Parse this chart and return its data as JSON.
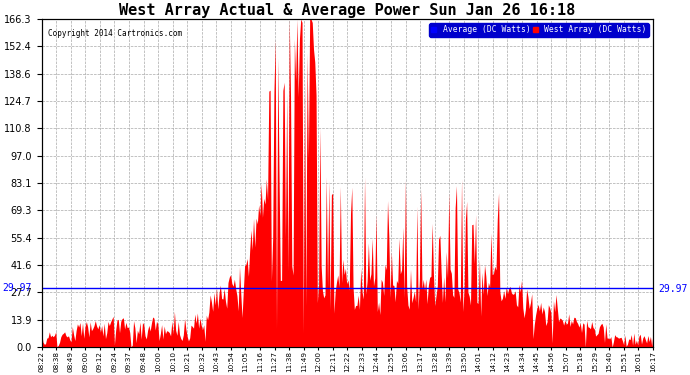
{
  "title": "West Array Actual & Average Power Sun Jan 26 16:18",
  "copyright": "Copyright 2014 Cartronics.com",
  "avg_value": 29.97,
  "ymax": 166.3,
  "ymin": 0.0,
  "yticks": [
    0.0,
    13.9,
    27.7,
    41.6,
    55.4,
    69.3,
    83.1,
    97.0,
    110.8,
    124.7,
    138.6,
    152.4,
    166.3
  ],
  "avg_label": "Average (DC Watts)",
  "west_label": "West Array (DC Watts)",
  "avg_color": "#0000ff",
  "west_color": "#ff0000",
  "background_color": "#ffffff",
  "grid_color": "#aaaaaa",
  "title_fontsize": 11,
  "label_fontsize": 7,
  "xtick_labels": [
    "08:22",
    "08:38",
    "08:49",
    "09:00",
    "09:12",
    "09:24",
    "09:37",
    "09:48",
    "10:00",
    "10:10",
    "10:21",
    "10:32",
    "10:43",
    "10:54",
    "11:05",
    "11:16",
    "11:27",
    "11:38",
    "11:49",
    "12:00",
    "12:11",
    "12:22",
    "12:33",
    "12:44",
    "12:55",
    "13:06",
    "13:17",
    "13:28",
    "13:39",
    "13:50",
    "14:01",
    "14:12",
    "14:23",
    "14:34",
    "14:45",
    "14:56",
    "15:07",
    "15:18",
    "15:29",
    "15:40",
    "15:51",
    "16:01",
    "16:17"
  ]
}
